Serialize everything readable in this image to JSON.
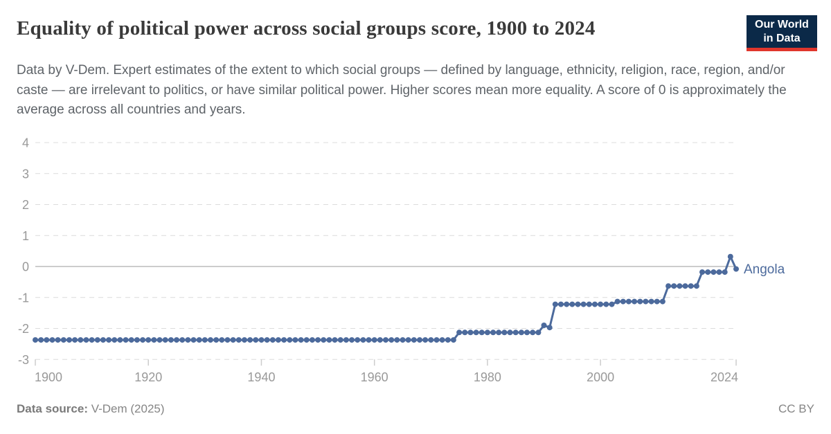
{
  "header": {
    "title": "Equality of political power across social groups score, 1900 to 2024",
    "subtitle": "Data by V-Dem. Expert estimates of the extent to which social groups — defined by language, ethnicity, religion, race, region, and/or caste — are irrelevant to politics, or have similar political power. Higher scores mean more equality. A score of 0 is approximately the average across all countries and years.",
    "logo": {
      "line1": "Our World",
      "line2": "in Data",
      "bg_color": "#0b2948",
      "bar_color": "#e0362c"
    }
  },
  "chart_data": {
    "type": "line",
    "title": "Equality of political power across social groups score, 1900 to 2024",
    "entity_label": "Angola",
    "x_ticks": [
      1900,
      1920,
      1940,
      1960,
      1980,
      2000,
      2024
    ],
    "y_ticks": [
      4,
      3,
      2,
      1,
      0,
      -1,
      -2,
      -3
    ],
    "xlim": [
      1900,
      2024
    ],
    "ylim": [
      -3,
      4
    ],
    "grid": "horizontal dashed gridlines, solid axis line at 0",
    "legend_position": "label at end of line",
    "series": [
      {
        "name": "Angola",
        "color": "#4c6a9c",
        "marker": "circle",
        "segments": [
          [
            1900,
            1974,
            -2.37
          ],
          [
            1975,
            1989,
            -2.13
          ],
          [
            1990,
            1990,
            -1.9
          ],
          [
            1991,
            1991,
            -1.97
          ],
          [
            1992,
            2002,
            -1.22
          ],
          [
            2003,
            2011,
            -1.13
          ],
          [
            2012,
            2017,
            -0.63
          ],
          [
            2018,
            2022,
            -0.18
          ],
          [
            2023,
            2023,
            0.32
          ],
          [
            2024,
            2024,
            -0.08
          ]
        ]
      }
    ]
  },
  "footer": {
    "source_label": "Data source:",
    "source_value": " V-Dem (2025)",
    "license": "CC BY"
  }
}
